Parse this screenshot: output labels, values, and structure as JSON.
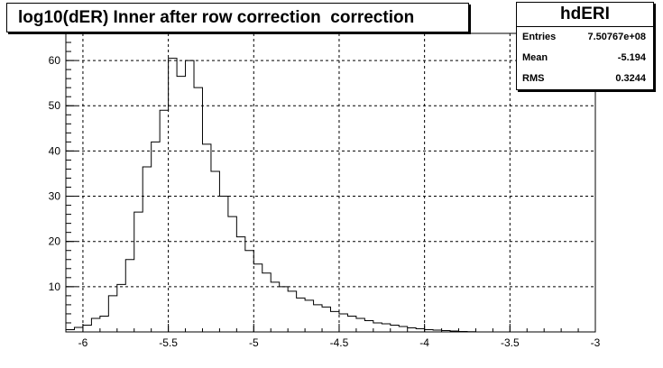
{
  "chart_data": {
    "type": "histogram",
    "title": "log10(dER) Inner after row correction  correction",
    "xlim": [
      -6.1,
      -3.0
    ],
    "ylim": [
      0,
      66
    ],
    "x_ticks": [
      "-6",
      "-5.5",
      "-5",
      "-4.5",
      "-4",
      "-3.5",
      "-3"
    ],
    "x_tick_values": [
      -6.0,
      -5.5,
      -5.0,
      -4.5,
      -4.0,
      -3.5,
      -3.0
    ],
    "y_ticks": [
      "10",
      "20",
      "30",
      "40",
      "50",
      "60"
    ],
    "y_tick_values": [
      10,
      20,
      30,
      40,
      50,
      60
    ],
    "grid": true,
    "bin_width": 0.05,
    "bin_start": -6.1,
    "values": [
      0.5,
      1.0,
      1.5,
      3.0,
      3.5,
      8.0,
      10.5,
      16.0,
      26.5,
      36.5,
      42.0,
      49.0,
      60.5,
      56.5,
      60.0,
      54.0,
      41.5,
      35.5,
      30.0,
      25.5,
      21.0,
      18.0,
      15.0,
      13.0,
      11.0,
      10.0,
      9.0,
      7.5,
      7.0,
      6.0,
      5.5,
      4.5,
      4.0,
      3.5,
      3.0,
      2.5,
      2.0,
      1.8,
      1.5,
      1.2,
      0.9,
      0.7,
      0.5,
      0.4,
      0.3,
      0.2,
      0.1,
      0.05
    ]
  },
  "stats": {
    "name": "hdERI",
    "rows": [
      {
        "label": "Entries",
        "value": "7.50767e+08"
      },
      {
        "label": "Mean",
        "value": "-5.194"
      },
      {
        "label": "RMS",
        "value": "0.3244"
      }
    ]
  }
}
